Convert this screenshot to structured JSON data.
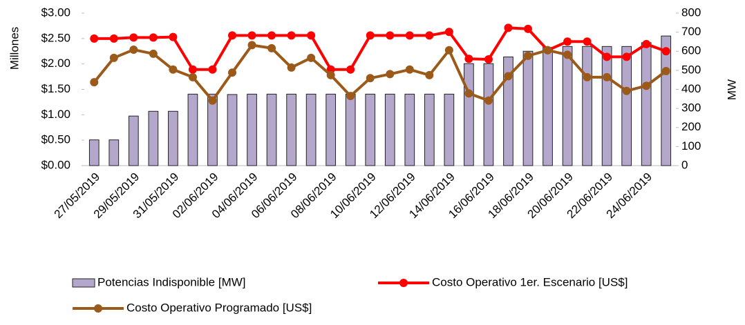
{
  "chart_data": {
    "type": "bar-line",
    "y_label": "Millones",
    "y2_label": "MW",
    "categories": [
      "27/05/2019",
      null,
      "29/05/2019",
      null,
      "31/05/2019",
      null,
      "02/06/2019",
      null,
      "04/06/2019",
      null,
      "06/06/2019",
      null,
      "08/06/2019",
      null,
      "10/06/2019",
      null,
      "12/06/2019",
      null,
      "14/06/2019",
      null,
      "16/06/2019",
      null,
      "18/06/2019",
      null,
      "20/06/2019",
      null,
      "22/06/2019",
      null,
      "24/06/2019",
      null
    ],
    "series": [
      {
        "name": "Potencias Indisponible [MW]",
        "type": "bar",
        "axis": "y2",
        "color": "#b4a7cc",
        "values": [
          135,
          135,
          260,
          285,
          285,
          375,
          375,
          373,
          375,
          375,
          375,
          375,
          375,
          375,
          375,
          375,
          375,
          375,
          375,
          535,
          535,
          570,
          600,
          620,
          625,
          625,
          625,
          625,
          645,
          680
        ]
      },
      {
        "name": "Costo Operativo 1er. Escenario [US$]",
        "type": "line",
        "color": "#ff0000",
        "values": [
          2.5,
          2.5,
          2.52,
          2.52,
          2.53,
          1.89,
          1.89,
          2.56,
          2.56,
          2.56,
          2.56,
          2.56,
          1.89,
          1.89,
          2.56,
          2.56,
          2.56,
          2.56,
          2.63,
          2.1,
          2.09,
          2.71,
          2.69,
          2.27,
          2.44,
          2.44,
          2.14,
          2.14,
          2.39,
          2.25
        ]
      },
      {
        "name": "Costo Operativo Programado [US$]",
        "type": "line",
        "color": "#9c5a1a",
        "values": [
          1.64,
          2.12,
          2.28,
          2.2,
          1.89,
          1.74,
          1.28,
          1.83,
          2.37,
          2.31,
          1.93,
          2.12,
          1.78,
          1.37,
          1.72,
          1.8,
          1.89,
          1.78,
          2.27,
          1.42,
          1.28,
          1.76,
          2.16,
          2.27,
          2.18,
          1.74,
          1.74,
          1.47,
          1.57,
          1.86
        ]
      }
    ],
    "ylim": [
      0,
      3
    ],
    "yticks": [
      {
        "value": 0,
        "label": "$0.00"
      },
      {
        "value": 0.5,
        "label": "$0.50"
      },
      {
        "value": 1,
        "label": "$1.00"
      },
      {
        "value": 1.5,
        "label": "$1.50"
      },
      {
        "value": 2,
        "label": "$2.00"
      },
      {
        "value": 2.5,
        "label": "$2.50"
      },
      {
        "value": 3,
        "label": "$3.00"
      }
    ],
    "y2lim": [
      0,
      800
    ],
    "y2ticks": [
      0,
      100,
      200,
      300,
      400,
      500,
      600,
      700,
      800
    ],
    "legend": "bottom"
  }
}
